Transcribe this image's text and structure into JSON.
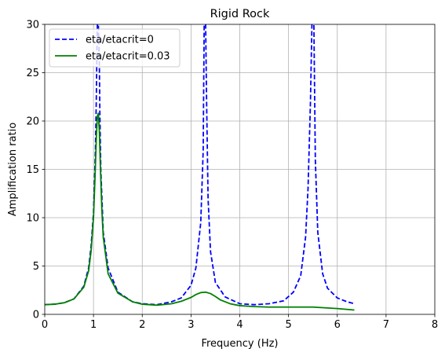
{
  "chart_data": {
    "type": "line",
    "title": "Rigid Rock",
    "xlabel": "Frequency (Hz)",
    "ylabel": "Amplification ratio",
    "xlim": [
      0,
      8
    ],
    "ylim": [
      0,
      30
    ],
    "xticks": [
      0,
      1,
      2,
      3,
      4,
      5,
      6,
      7,
      8
    ],
    "yticks": [
      0,
      5,
      10,
      15,
      20,
      25,
      30
    ],
    "grid": true,
    "legend_position": "upper-left",
    "series": [
      {
        "name": "eta/etacrit=0",
        "color": "#0000ff",
        "linestyle": "dashed",
        "x": [
          0,
          0.2,
          0.4,
          0.6,
          0.8,
          0.9,
          0.95,
          1.0,
          1.04,
          1.06,
          1.07,
          1.08,
          1.09,
          1.1,
          1.12,
          1.13,
          1.15,
          1.2,
          1.3,
          1.5,
          1.8,
          2.0,
          2.3,
          2.6,
          2.8,
          3.0,
          3.1,
          3.2,
          3.25,
          3.27,
          3.3,
          3.32,
          3.35,
          3.4,
          3.5,
          3.7,
          4.0,
          4.3,
          4.6,
          4.9,
          5.1,
          5.25,
          5.35,
          5.4,
          5.45,
          5.48,
          5.5,
          5.52,
          5.55,
          5.6,
          5.7,
          5.8,
          6.0,
          6.2,
          6.35
        ],
        "y": [
          1.0,
          1.05,
          1.2,
          1.6,
          2.9,
          4.8,
          7.0,
          10.5,
          17.0,
          23.0,
          27.5,
          30.0,
          30.0,
          30.0,
          26.0,
          21.0,
          15.0,
          8.5,
          4.8,
          2.3,
          1.3,
          1.1,
          1.0,
          1.3,
          1.7,
          3.0,
          4.8,
          9.5,
          17.0,
          30.0,
          30.0,
          22.0,
          12.0,
          6.5,
          3.3,
          1.8,
          1.1,
          1.0,
          1.1,
          1.4,
          2.3,
          4.0,
          8.0,
          13.0,
          22.0,
          30.0,
          30.0,
          30.0,
          16.0,
          8.5,
          4.2,
          2.7,
          1.7,
          1.3,
          1.1
        ]
      },
      {
        "name": "eta/etacrit=0.03",
        "color": "#008000",
        "linestyle": "solid",
        "x": [
          0,
          0.2,
          0.4,
          0.6,
          0.8,
          0.9,
          0.95,
          1.0,
          1.03,
          1.06,
          1.08,
          1.1,
          1.12,
          1.14,
          1.17,
          1.2,
          1.3,
          1.5,
          1.8,
          2.0,
          2.3,
          2.6,
          2.8,
          3.0,
          3.1,
          3.2,
          3.3,
          3.4,
          3.5,
          3.6,
          3.8,
          4.0,
          4.3,
          4.6,
          5.0,
          5.5,
          6.0,
          6.35
        ],
        "y": [
          1.0,
          1.05,
          1.2,
          1.6,
          2.8,
          4.5,
          6.5,
          10.0,
          14.0,
          18.5,
          20.5,
          20.8,
          19.0,
          15.5,
          11.0,
          8.0,
          4.2,
          2.2,
          1.3,
          1.05,
          0.95,
          1.1,
          1.35,
          1.75,
          2.05,
          2.25,
          2.3,
          2.15,
          1.85,
          1.5,
          1.1,
          0.9,
          0.8,
          0.75,
          0.75,
          0.75,
          0.6,
          0.45
        ]
      }
    ]
  }
}
